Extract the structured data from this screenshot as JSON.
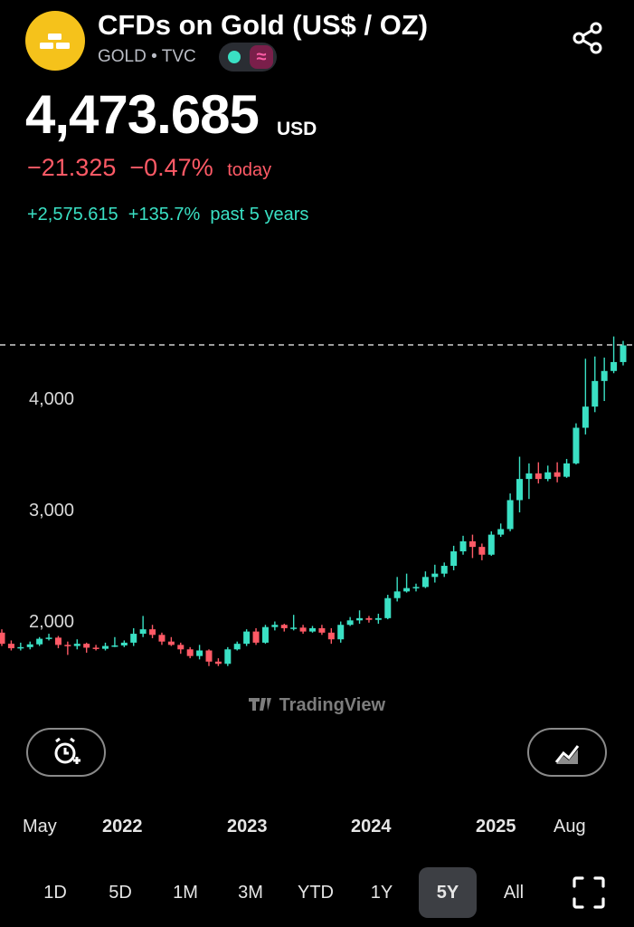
{
  "header": {
    "title": "CFDs on Gold (US$ / OZ)",
    "symbol": "GOLD",
    "separator": "•",
    "exchange": "TVC",
    "logo_icon": "gold-bars-icon",
    "share_icon": "share-icon"
  },
  "quote": {
    "price": "4,473.685",
    "currency": "USD",
    "change_abs": "−21.325",
    "change_pct": "−0.47%",
    "change_period": "today",
    "change5_abs": "+2,575.615",
    "change5_pct": "+135.7%",
    "change5_period": "past 5 years"
  },
  "colors": {
    "up": "#3ae0c4",
    "down": "#ff5a66",
    "bg": "#000000",
    "logo": "#f5c21b"
  },
  "chart_data": {
    "type": "candlestick",
    "ylim": [
      1600,
      4700
    ],
    "y_ticks": [
      "2,000",
      "3,000",
      "4,000"
    ],
    "y_tick_values": [
      2000,
      3000,
      4000
    ],
    "last_price_line": 4473.685,
    "x_labels": [
      "May",
      "2022",
      "2023",
      "2024",
      "2025",
      "Aug"
    ],
    "candles": [
      [
        1920,
        1820,
        1950,
        1800
      ],
      [
        1820,
        1780,
        1850,
        1760
      ],
      [
        1780,
        1790,
        1830,
        1760
      ],
      [
        1790,
        1815,
        1840,
        1770
      ],
      [
        1815,
        1865,
        1880,
        1800
      ],
      [
        1865,
        1875,
        1910,
        1850
      ],
      [
        1875,
        1810,
        1890,
        1780
      ],
      [
        1810,
        1800,
        1840,
        1720
      ],
      [
        1800,
        1820,
        1860,
        1770
      ],
      [
        1820,
        1785,
        1830,
        1740
      ],
      [
        1785,
        1775,
        1810,
        1760
      ],
      [
        1775,
        1800,
        1830,
        1760
      ],
      [
        1800,
        1805,
        1880,
        1790
      ],
      [
        1805,
        1830,
        1850,
        1790
      ],
      [
        1830,
        1910,
        1960,
        1800
      ],
      [
        1910,
        1950,
        2070,
        1880
      ],
      [
        1950,
        1900,
        1990,
        1870
      ],
      [
        1900,
        1840,
        1920,
        1810
      ],
      [
        1840,
        1810,
        1880,
        1800
      ],
      [
        1810,
        1770,
        1830,
        1730
      ],
      [
        1770,
        1710,
        1790,
        1690
      ],
      [
        1710,
        1760,
        1810,
        1680
      ],
      [
        1760,
        1660,
        1770,
        1620
      ],
      [
        1660,
        1640,
        1690,
        1620
      ],
      [
        1640,
        1770,
        1790,
        1620
      ],
      [
        1770,
        1820,
        1840,
        1760
      ],
      [
        1820,
        1930,
        1950,
        1800
      ],
      [
        1930,
        1830,
        1960,
        1810
      ],
      [
        1830,
        1970,
        1990,
        1820
      ],
      [
        1970,
        1990,
        2020,
        1940
      ],
      [
        1990,
        1960,
        2000,
        1930
      ],
      [
        1960,
        1965,
        2080,
        1940
      ],
      [
        1965,
        1930,
        1990,
        1910
      ],
      [
        1930,
        1960,
        1980,
        1920
      ],
      [
        1960,
        1920,
        1990,
        1900
      ],
      [
        1920,
        1860,
        1960,
        1820
      ],
      [
        1860,
        1990,
        2020,
        1830
      ],
      [
        1990,
        2030,
        2060,
        1980
      ],
      [
        2030,
        2050,
        2120,
        2000
      ],
      [
        2050,
        2035,
        2070,
        2010
      ],
      [
        2035,
        2050,
        2090,
        2000
      ],
      [
        2050,
        2230,
        2260,
        2040
      ],
      [
        2230,
        2290,
        2420,
        2200
      ],
      [
        2290,
        2320,
        2450,
        2280
      ],
      [
        2320,
        2330,
        2360,
        2290
      ],
      [
        2330,
        2420,
        2470,
        2320
      ],
      [
        2420,
        2450,
        2530,
        2370
      ],
      [
        2450,
        2520,
        2550,
        2420
      ],
      [
        2520,
        2650,
        2700,
        2480
      ],
      [
        2650,
        2740,
        2790,
        2620
      ],
      [
        2740,
        2690,
        2800,
        2590
      ],
      [
        2690,
        2620,
        2720,
        2570
      ],
      [
        2620,
        2800,
        2830,
        2610
      ],
      [
        2800,
        2850,
        2900,
        2780
      ],
      [
        2850,
        3110,
        3170,
        2830
      ],
      [
        3110,
        3300,
        3500,
        3000
      ],
      [
        3300,
        3350,
        3440,
        3120
      ],
      [
        3350,
        3300,
        3450,
        3260
      ],
      [
        3300,
        3360,
        3420,
        3280
      ],
      [
        3360,
        3320,
        3450,
        3270
      ],
      [
        3320,
        3440,
        3480,
        3310
      ],
      [
        3440,
        3760,
        3800,
        3430
      ],
      [
        3760,
        3950,
        4380,
        3700
      ],
      [
        3950,
        4180,
        4400,
        3900
      ],
      [
        4180,
        4270,
        4390,
        4000
      ],
      [
        4270,
        4350,
        4580,
        4250
      ],
      [
        4350,
        4500,
        4540,
        4320
      ]
    ]
  },
  "buttons": {
    "alert_icon": "add-alert-clock-icon",
    "indicators_icon": "indicators-chart-icon",
    "fullscreen_icon": "fullscreen-icon"
  },
  "watermark": "TradingView",
  "ranges": [
    "1D",
    "5D",
    "1M",
    "3M",
    "YTD",
    "1Y",
    "5Y",
    "All"
  ],
  "active_range": "5Y"
}
